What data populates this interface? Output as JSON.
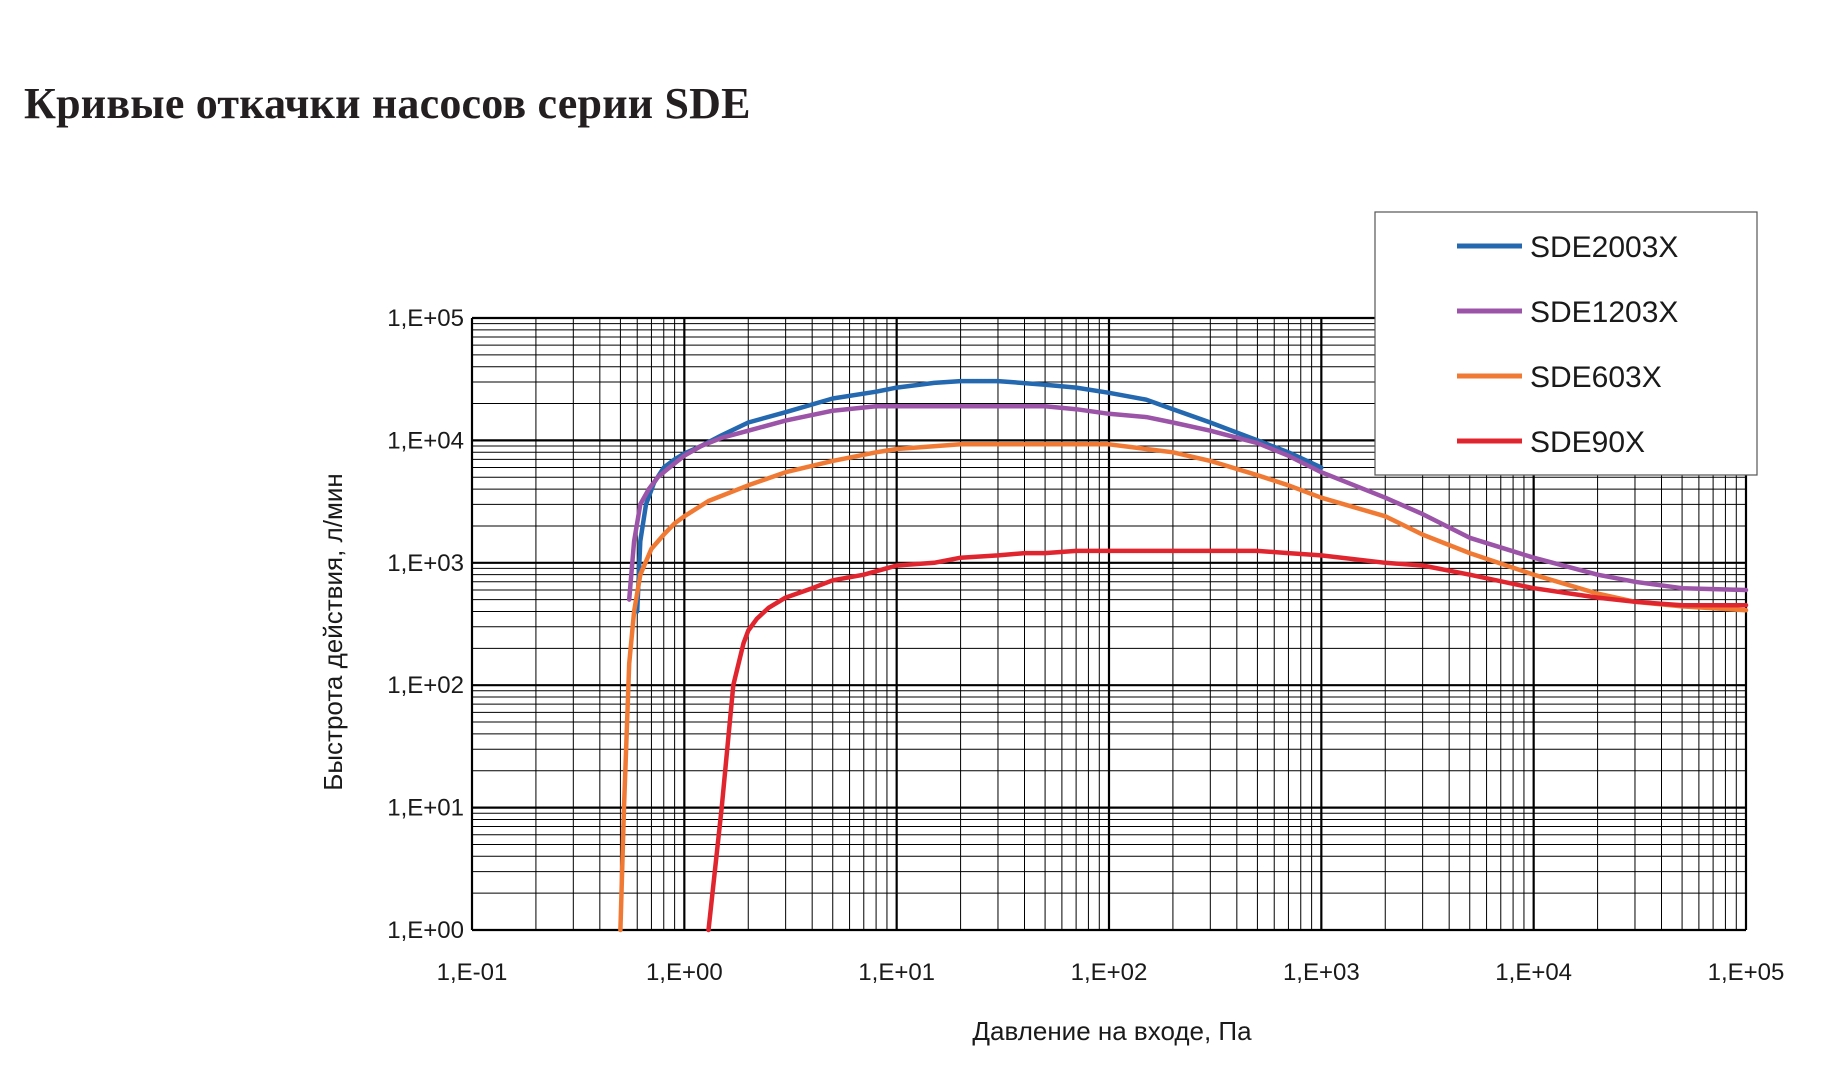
{
  "title": "Кривые откачки насосов серии SDE",
  "chart_data": {
    "type": "line",
    "title": "",
    "xlabel": "Давление на входе, Па",
    "ylabel": "Быстрота действия, л/мин",
    "xscale": "log",
    "yscale": "log",
    "xlim": [
      0.1,
      100000
    ],
    "ylim": [
      1,
      100000
    ],
    "grid": true,
    "legend_position": "top-right",
    "x_ticks": [
      "1,E-01",
      "1,E+00",
      "1,E+01",
      "1,E+02",
      "1,E+03",
      "1,E+04",
      "1,E+05"
    ],
    "y_ticks": [
      "1,E+00",
      "1,E+01",
      "1,E+02",
      "1,E+03",
      "1,E+04",
      "1,E+05"
    ],
    "series": [
      {
        "name": "SDE2003X",
        "color": "#2468b0",
        "x": [
          0.6,
          0.62,
          0.66,
          0.72,
          0.8,
          0.9,
          1.0,
          1.2,
          1.5,
          2.0,
          3.0,
          5.0,
          8.0,
          10,
          15,
          20,
          30,
          50,
          70,
          100,
          150,
          200,
          300,
          500,
          700,
          1000
        ],
        "y": [
          400,
          1500,
          3000,
          4500,
          6000,
          7000,
          7800,
          9000,
          11000,
          14000,
          17000,
          22000,
          25000,
          27000,
          29500,
          30500,
          30500,
          28500,
          27000,
          24500,
          21500,
          18000,
          14000,
          10000,
          8000,
          6000
        ]
      },
      {
        "name": "SDE1203X",
        "color": "#9b54a7",
        "x": [
          0.55,
          0.58,
          0.62,
          0.68,
          0.75,
          0.85,
          1.0,
          1.2,
          1.5,
          2.0,
          3.0,
          5.0,
          8.0,
          10,
          20,
          30,
          50,
          70,
          100,
          150,
          200,
          300,
          500,
          700,
          1000,
          2000,
          3000,
          5000,
          10000,
          20000,
          30000,
          50000,
          100000
        ],
        "y": [
          500,
          1500,
          3000,
          4000,
          5000,
          6000,
          7500,
          9000,
          10500,
          12000,
          14500,
          17500,
          19000,
          19000,
          19000,
          19000,
          19000,
          18000,
          16500,
          15500,
          14000,
          12000,
          9500,
          7500,
          5500,
          3400,
          2500,
          1600,
          1100,
          800,
          700,
          620,
          600
        ]
      },
      {
        "name": "SDE603X",
        "color": "#f07a34",
        "x": [
          0.5,
          0.52,
          0.55,
          0.58,
          0.62,
          0.7,
          0.8,
          0.9,
          1.0,
          1.3,
          2.0,
          3.0,
          5.0,
          8.0,
          10,
          20,
          30,
          50,
          100,
          200,
          300,
          500,
          700,
          1000,
          2000,
          3000,
          5000,
          10000,
          20000,
          30000,
          50000,
          100000
        ],
        "y": [
          1,
          10,
          150,
          400,
          800,
          1300,
          1700,
          2100,
          2400,
          3200,
          4300,
          5500,
          6800,
          8000,
          8500,
          9300,
          9300,
          9300,
          9300,
          8000,
          6800,
          5200,
          4300,
          3400,
          2400,
          1700,
          1200,
          800,
          560,
          480,
          440,
          410
        ]
      },
      {
        "name": "SDE90X",
        "color": "#e0252e",
        "x": [
          1.3,
          1.5,
          1.7,
          1.9,
          2.0,
          2.2,
          2.5,
          3.0,
          4.0,
          5.0,
          7.0,
          10,
          15,
          20,
          30,
          40,
          50,
          70,
          100,
          200,
          300,
          500,
          700,
          1000,
          2000,
          3000,
          5000,
          10000,
          20000,
          30000,
          50000,
          100000
        ],
        "y": [
          1,
          10,
          100,
          220,
          280,
          350,
          430,
          520,
          620,
          720,
          800,
          950,
          1000,
          1100,
          1150,
          1200,
          1200,
          1250,
          1250,
          1250,
          1250,
          1250,
          1200,
          1150,
          1000,
          950,
          800,
          620,
          520,
          480,
          450,
          450
        ]
      }
    ]
  }
}
